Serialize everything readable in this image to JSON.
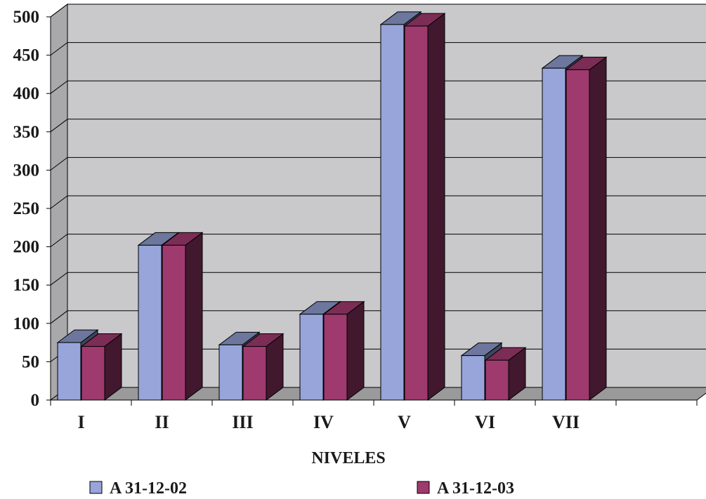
{
  "chart_data": {
    "type": "bar",
    "style": "3d-clustered-column",
    "categories": [
      "I",
      "II",
      "III",
      "IV",
      "V",
      "VI",
      "VII",
      ""
    ],
    "series": [
      {
        "name": "A 31-12-02",
        "color": "#97A5DA",
        "values": [
          75,
          202,
          72,
          112,
          490,
          58,
          433,
          null
        ]
      },
      {
        "name": "A 31-12-03",
        "color": "#9E3A6E",
        "values": [
          70,
          202,
          70,
          112,
          488,
          52,
          431,
          null
        ]
      }
    ],
    "xlabel": "NIVELES",
    "ylabel": "",
    "ylim": [
      0,
      500
    ],
    "yticks": [
      0,
      50,
      100,
      150,
      200,
      250,
      300,
      350,
      400,
      450,
      500
    ],
    "grid": true,
    "legend": "bottom",
    "colors": {
      "wall": "#C9C9CB",
      "floor": "#9A9A9A",
      "gridline": "#000000"
    }
  }
}
